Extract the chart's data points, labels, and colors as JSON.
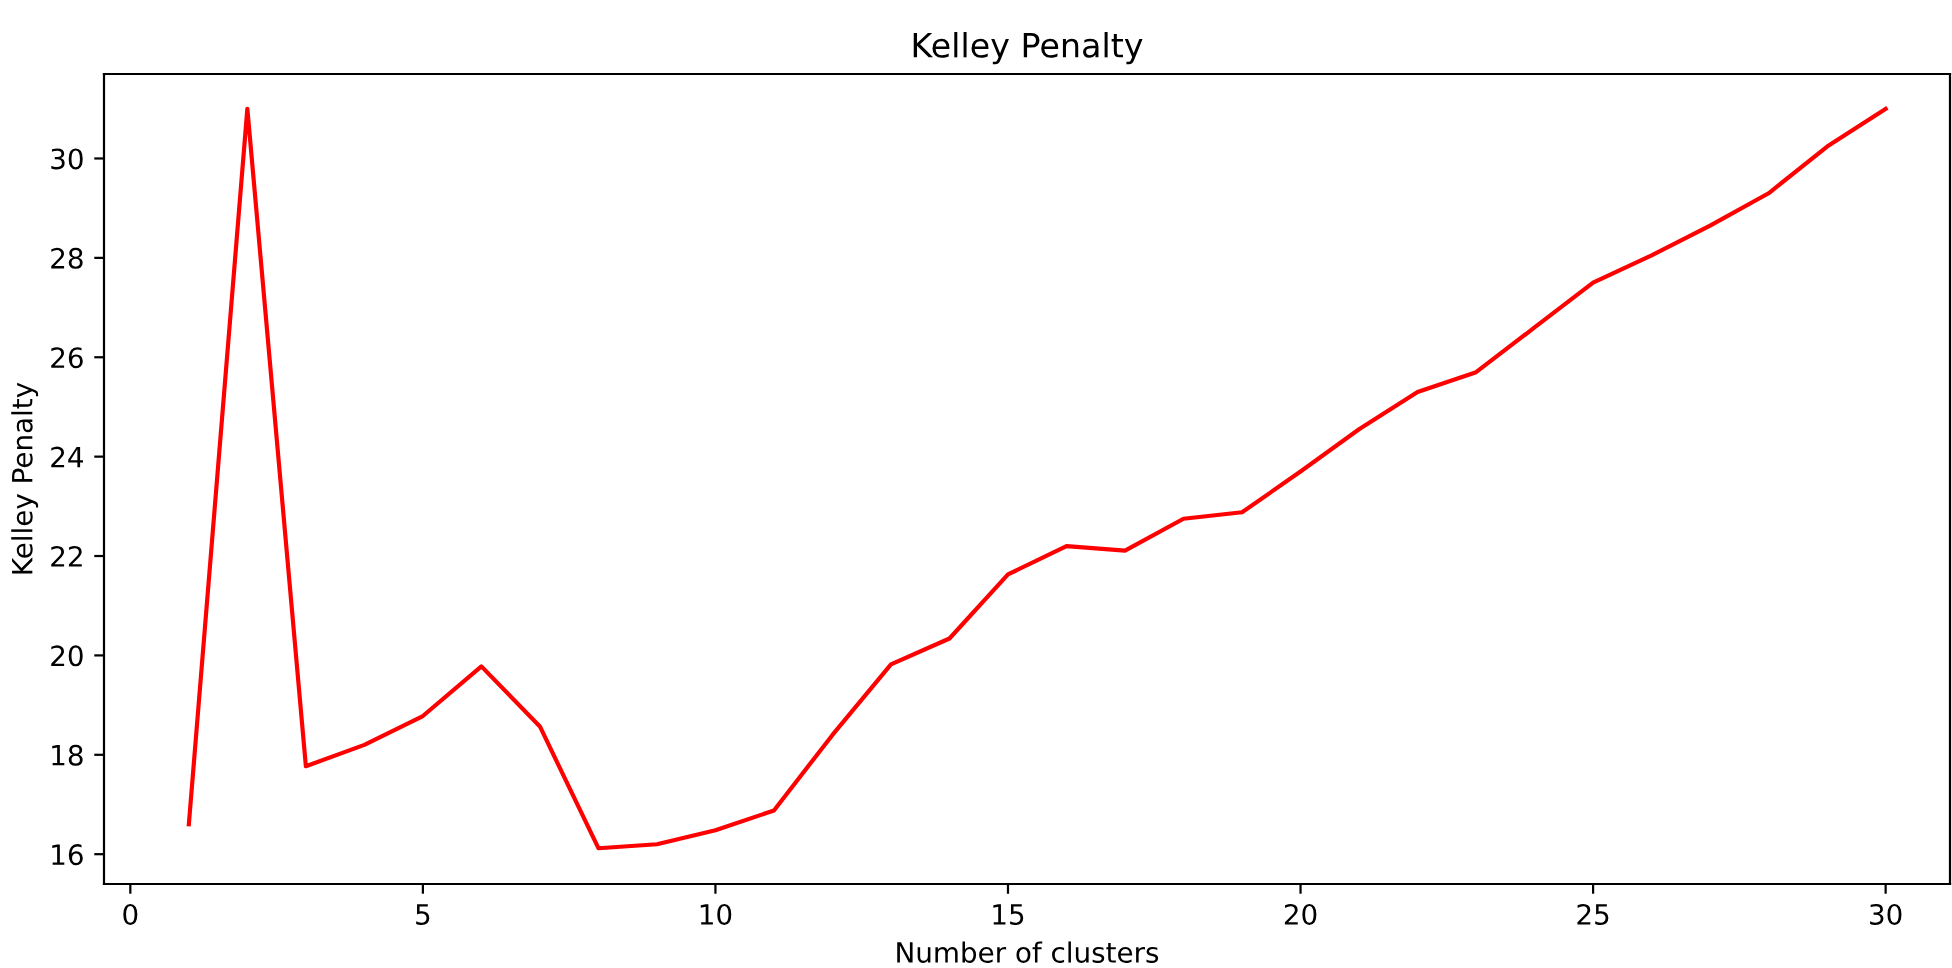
{
  "chart_data": {
    "type": "line",
    "title": "Kelley Penalty",
    "xlabel": "Number of clusters",
    "ylabel": "Kelley Penalty",
    "x": [
      1,
      2,
      3,
      4,
      5,
      6,
      7,
      8,
      9,
      10,
      11,
      12,
      13,
      14,
      15,
      16,
      17,
      18,
      19,
      20,
      21,
      22,
      23,
      24,
      25,
      26,
      27,
      28,
      29,
      30
    ],
    "series": [
      {
        "color": "#ff0000",
        "values": [
          16.6,
          31.0,
          17.77,
          18.2,
          18.78,
          19.78,
          18.57,
          16.12,
          16.2,
          16.48,
          16.88,
          18.4,
          19.82,
          20.34,
          21.63,
          22.2,
          22.11,
          22.75,
          22.88,
          23.7,
          24.55,
          25.3,
          25.7,
          26.6,
          27.5,
          28.05,
          28.65,
          29.3,
          30.24,
          31.0
        ]
      }
    ],
    "xlim": [
      -0.45,
      31.1
    ],
    "ylim": [
      15.4,
      31.7
    ],
    "xticks": [
      0,
      5,
      10,
      15,
      20,
      25,
      30
    ],
    "yticks": [
      16,
      18,
      20,
      22,
      24,
      26,
      28,
      30
    ],
    "grid": false,
    "legend": false
  }
}
